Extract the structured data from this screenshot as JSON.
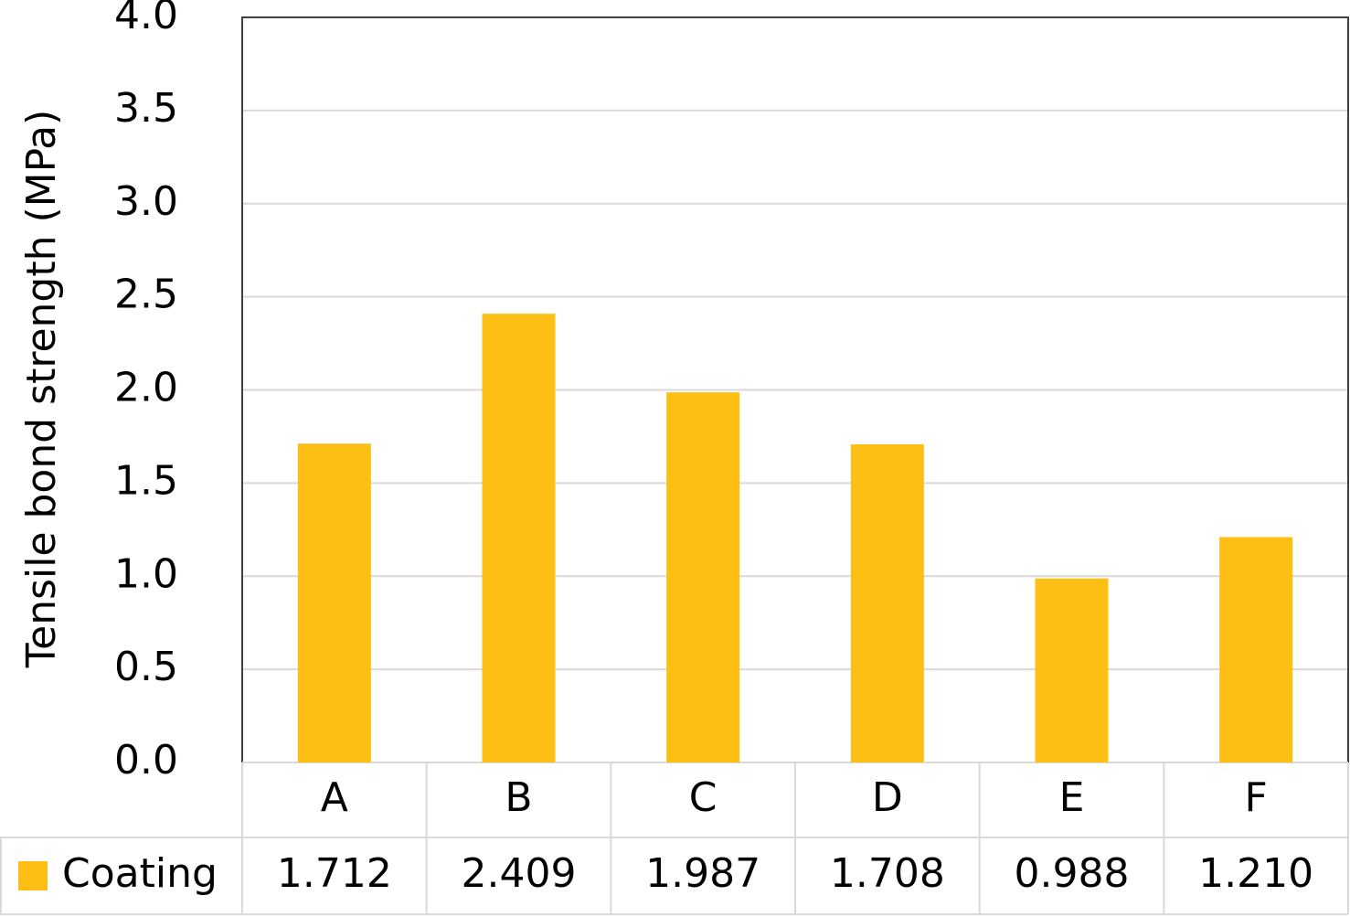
{
  "chart_data": {
    "type": "bar",
    "y_label": "Tensile bond strength (MPa)",
    "categories": [
      "A",
      "B",
      "C",
      "D",
      "E",
      "F"
    ],
    "series": [
      {
        "name": "Coating",
        "color": "#fdbf13",
        "values": [
          1.712,
          2.409,
          1.987,
          1.708,
          0.988,
          1.21
        ],
        "value_labels": [
          "1.712",
          "2.409",
          "1.987",
          "1.708",
          "0.988",
          "1.210"
        ]
      }
    ],
    "ylim": [
      0,
      4
    ],
    "yticks": [
      {
        "value": 0,
        "label": "0.0"
      },
      0.5,
      {
        "value": 1,
        "label": "1.0"
      },
      1.5,
      {
        "value": 2,
        "label": "2.0"
      },
      2.5,
      {
        "value": 3,
        "label": "3.0"
      },
      3.5,
      {
        "value": 4,
        "label": "4.0"
      }
    ],
    "grid": true,
    "data_table": true
  }
}
